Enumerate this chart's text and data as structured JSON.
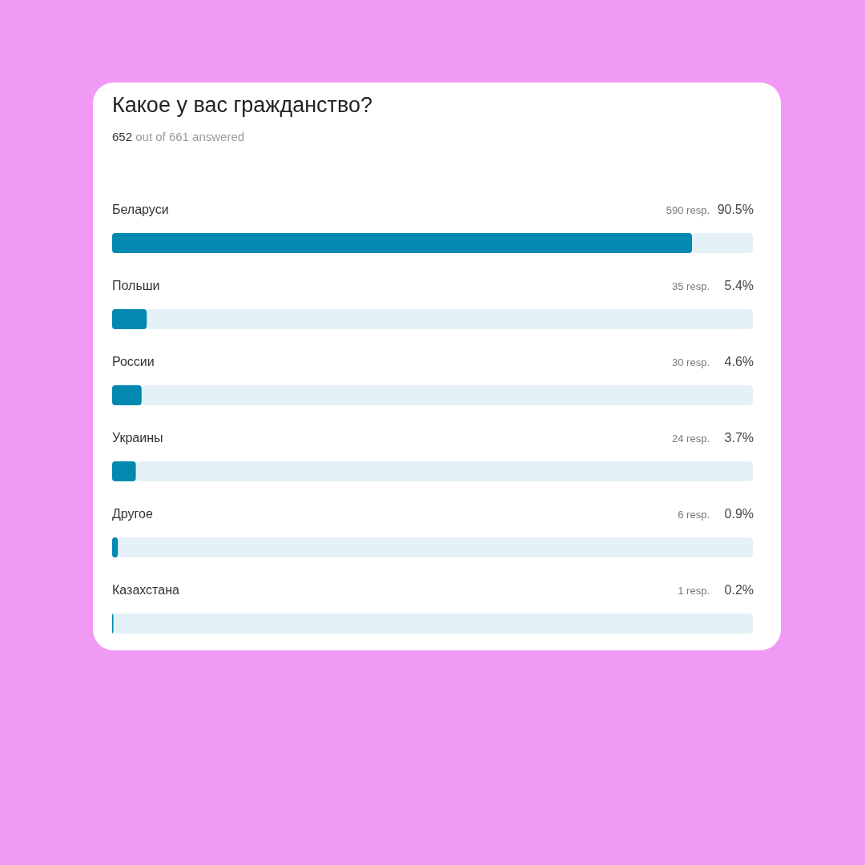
{
  "chart_data": {
    "type": "bar",
    "orientation": "horizontal",
    "title": "Какое у вас гражданство?",
    "subtitle": "652 out of 661 answered",
    "categories": [
      "Беларуси",
      "Польши",
      "России",
      "Украины",
      "Другое",
      "Казахстана"
    ],
    "values": [
      90.5,
      5.4,
      4.6,
      3.7,
      0.9,
      0.2
    ],
    "value_labels": [
      "90.5%",
      "5.4%",
      "4.6%",
      "3.7%",
      "0.9%",
      "0.2%"
    ],
    "color": "#0388b0",
    "xlim": [
      0,
      100
    ],
    "annotations": [
      "590 resp.",
      "35 resp.",
      "30 resp.",
      "24 resp.",
      "6 resp.",
      "1 resp."
    ]
  }
}
